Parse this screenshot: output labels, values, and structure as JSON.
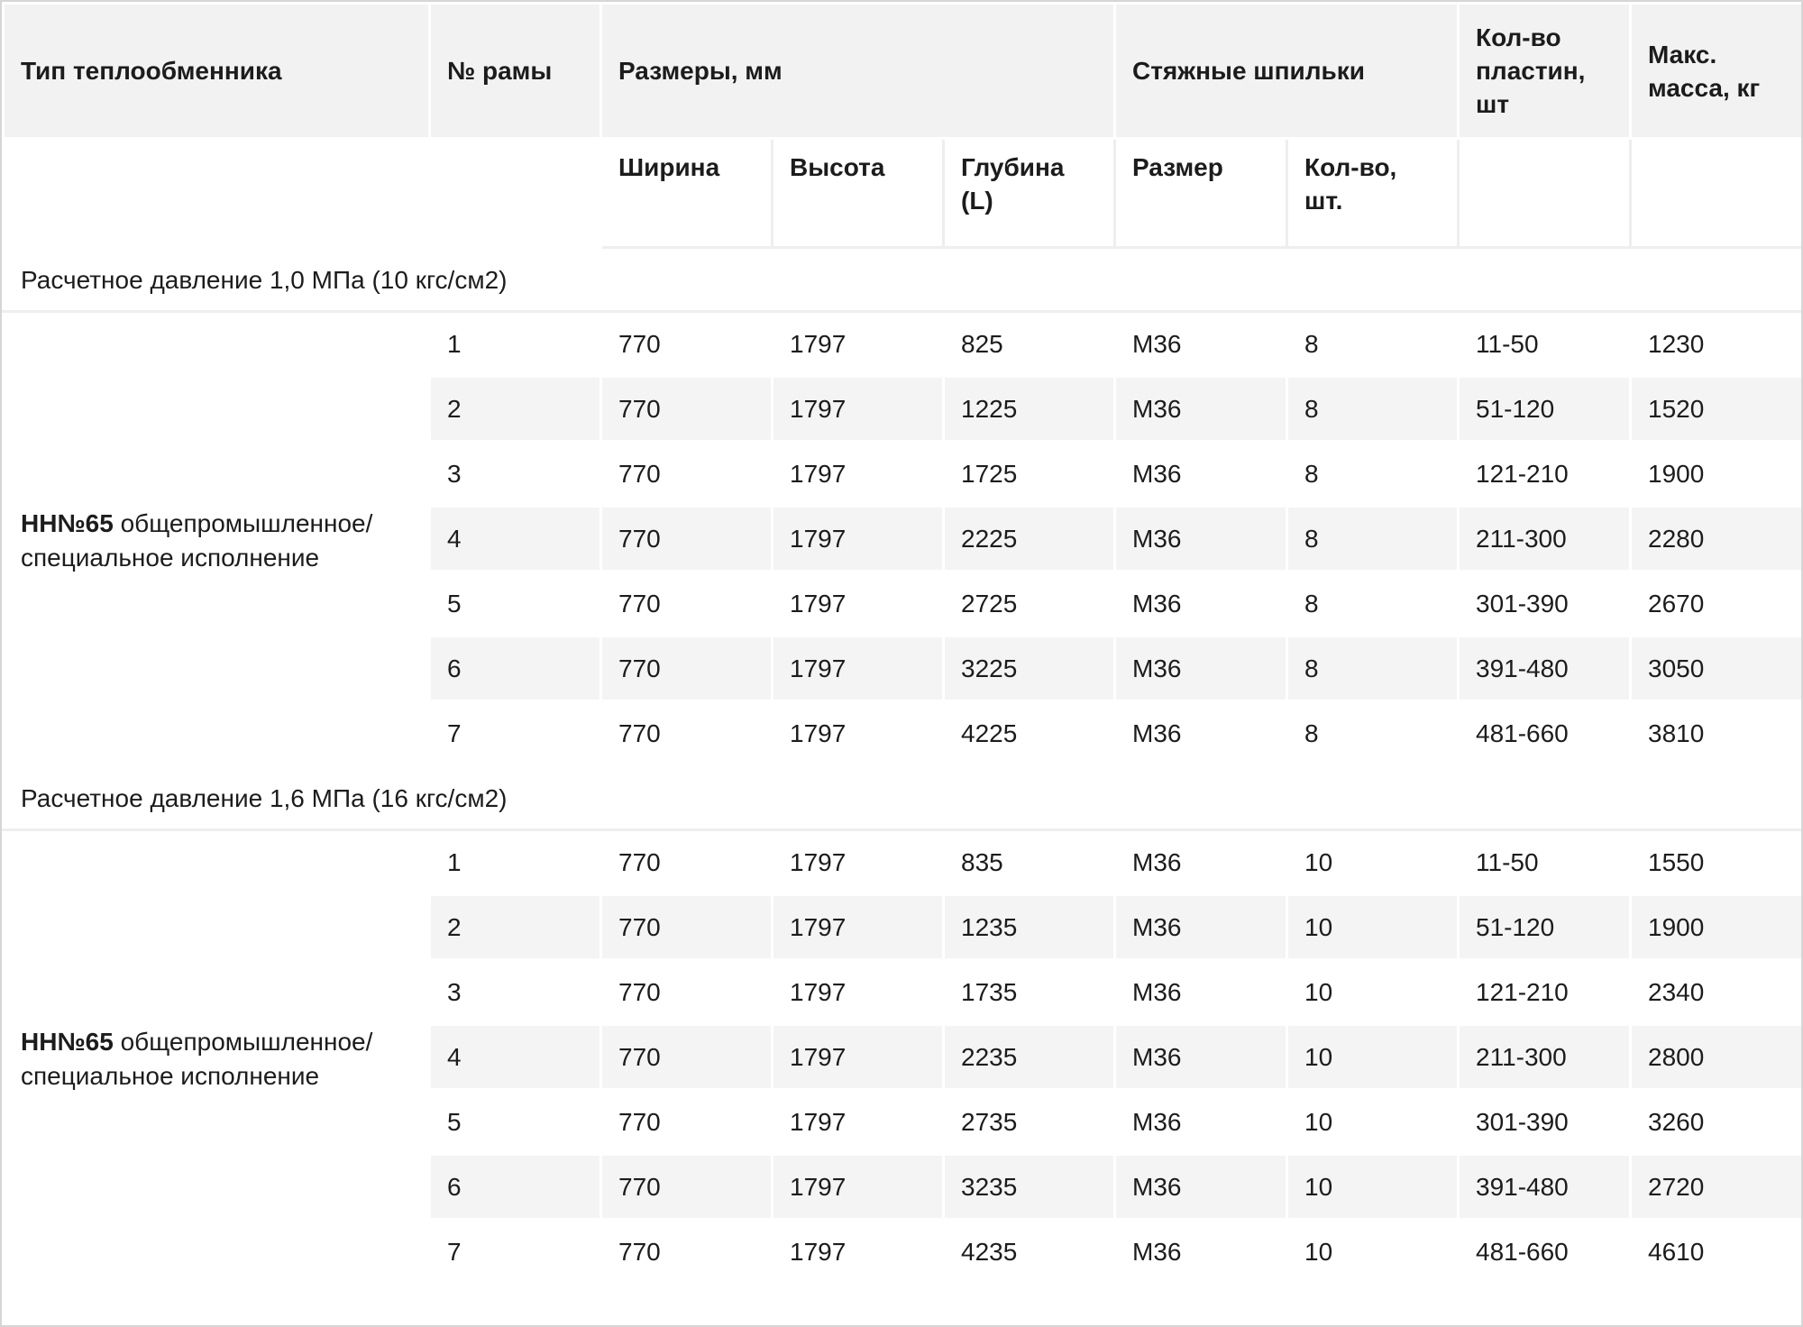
{
  "header": {
    "type": "Тип теплообменника",
    "frame": "№ рамы",
    "dims": "Размеры, мм",
    "studs": "Стяжные шпильки",
    "plates": "Кол-во пластин, шт",
    "mass": "Макс. масса, кг",
    "width": "Ширина",
    "height": "Высота",
    "depth": "Глубина (L)",
    "size": "Размер",
    "count": "Кол-во, шт."
  },
  "sections": [
    {
      "title": "Расчетное давление 1,0 МПа (10 кгс/см2)",
      "model": "НН№65",
      "model_desc": "общепромышленное/ специальное исполнение",
      "rows": [
        [
          "1",
          "770",
          "1797",
          "825",
          "M36",
          "8",
          "11-50",
          "1230"
        ],
        [
          "2",
          "770",
          "1797",
          "1225",
          "M36",
          "8",
          "51-120",
          "1520"
        ],
        [
          "3",
          "770",
          "1797",
          "1725",
          "M36",
          "8",
          "121-210",
          "1900"
        ],
        [
          "4",
          "770",
          "1797",
          "2225",
          "M36",
          "8",
          "211-300",
          "2280"
        ],
        [
          "5",
          "770",
          "1797",
          "2725",
          "M36",
          "8",
          "301-390",
          "2670"
        ],
        [
          "6",
          "770",
          "1797",
          "3225",
          "M36",
          "8",
          "391-480",
          "3050"
        ],
        [
          "7",
          "770",
          "1797",
          "4225",
          "M36",
          "8",
          "481-660",
          "3810"
        ]
      ]
    },
    {
      "title": "Расчетное давление 1,6 МПа (16 кгс/см2)",
      "model": "НН№65",
      "model_desc": "общепромышленное/ специальное исполнение",
      "rows": [
        [
          "1",
          "770",
          "1797",
          "835",
          "M36",
          "10",
          "11-50",
          "1550"
        ],
        [
          "2",
          "770",
          "1797",
          "1235",
          "M36",
          "10",
          "51-120",
          "1900"
        ],
        [
          "3",
          "770",
          "1797",
          "1735",
          "M36",
          "10",
          "121-210",
          "2340"
        ],
        [
          "4",
          "770",
          "1797",
          "2235",
          "M36",
          "10",
          "211-300",
          "2800"
        ],
        [
          "5",
          "770",
          "1797",
          "2735",
          "M36",
          "10",
          "301-390",
          "3260"
        ],
        [
          "6",
          "770",
          "1797",
          "3235",
          "M36",
          "10",
          "391-480",
          "2720"
        ],
        [
          "7",
          "770",
          "1797",
          "4235",
          "M36",
          "10",
          "481-660",
          "4610"
        ]
      ]
    }
  ]
}
